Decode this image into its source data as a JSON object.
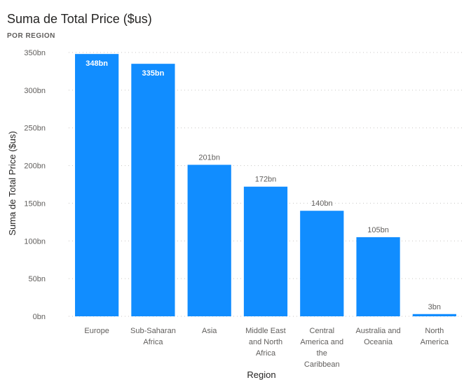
{
  "header": {
    "title": "Suma de Total Price ($us)",
    "subtitle": "POR REGION"
  },
  "colors": {
    "bar": "#118dff",
    "grid": "#c8c6c4",
    "label_outside": "#605e5c",
    "label_inside": "#ffffff"
  },
  "chart_data": {
    "type": "bar",
    "xlabel": "Region",
    "ylabel": "Suma de Total Price ($us)",
    "ylim": [
      0,
      350
    ],
    "yticks": [
      0,
      50,
      100,
      150,
      200,
      250,
      300,
      350
    ],
    "ytick_labels": [
      "0bn",
      "50bn",
      "100bn",
      "150bn",
      "200bn",
      "250bn",
      "300bn",
      "350bn"
    ],
    "grid": true,
    "categories": [
      "Europe",
      "Sub-Saharan Africa",
      "Asia",
      "Middle East and North Africa",
      "Central America and the Caribbean",
      "Australia and Oceania",
      "North America"
    ],
    "category_lines": [
      [
        "Europe"
      ],
      [
        "Sub-Saharan",
        "Africa"
      ],
      [
        "Asia"
      ],
      [
        "Middle East",
        "and North",
        "Africa"
      ],
      [
        "Central",
        "America and",
        "the",
        "Caribbean"
      ],
      [
        "Australia and",
        "Oceania"
      ],
      [
        "North",
        "America"
      ]
    ],
    "values": [
      348,
      335,
      201,
      172,
      140,
      105,
      3
    ],
    "data_labels": [
      "348bn",
      "335bn",
      "201bn",
      "172bn",
      "140bn",
      "105bn",
      "3bn"
    ]
  }
}
